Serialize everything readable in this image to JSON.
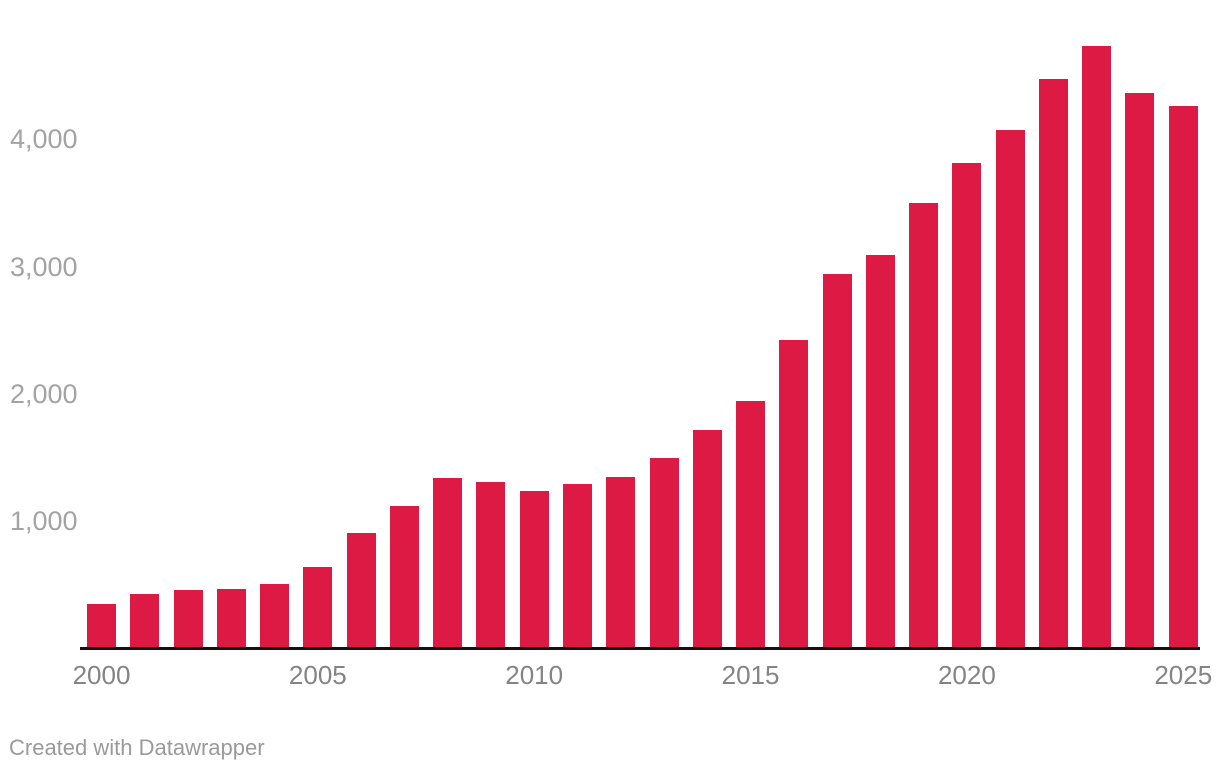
{
  "chart_data": {
    "type": "bar",
    "title": "",
    "categories": [
      2000,
      2001,
      2002,
      2003,
      2004,
      2005,
      2006,
      2007,
      2008,
      2009,
      2010,
      2011,
      2012,
      2013,
      2014,
      2015,
      2016,
      2017,
      2018,
      2019,
      2020,
      2021,
      2022,
      2023,
      2024,
      2025
    ],
    "values": [
      350,
      425,
      460,
      470,
      505,
      640,
      905,
      1120,
      1340,
      1310,
      1235,
      1290,
      1345,
      1495,
      1715,
      1945,
      2420,
      2945,
      3095,
      3500,
      3810,
      4075,
      4475,
      4730,
      4360,
      4260
    ],
    "xlabel": "",
    "ylabel": "",
    "ylim": [
      0,
      4800
    ],
    "grid": false,
    "legend": "none",
    "x_axis_ticks": [
      {
        "index": 0,
        "label": "2000"
      },
      {
        "index": 5,
        "label": "2005"
      },
      {
        "index": 10,
        "label": "2010"
      },
      {
        "index": 15,
        "label": "2015"
      },
      {
        "index": 20,
        "label": "2020"
      },
      {
        "index": 25,
        "label": "2025"
      }
    ],
    "y_axis_ticks": [
      {
        "value": 1000,
        "label": "1,000"
      },
      {
        "value": 2000,
        "label": "2,000"
      },
      {
        "value": 3000,
        "label": "3,000"
      },
      {
        "value": 4000,
        "label": "4,000"
      }
    ],
    "colors": {
      "bar": "#dc1a43",
      "axis_line": "#121212",
      "y_tick_text": "#a3a3a3",
      "x_tick_text": "#848484",
      "background": "#ffffff"
    }
  },
  "footer": {
    "attribution_text": "Created with Datawrapper",
    "text_color": "#9a9a9a"
  }
}
